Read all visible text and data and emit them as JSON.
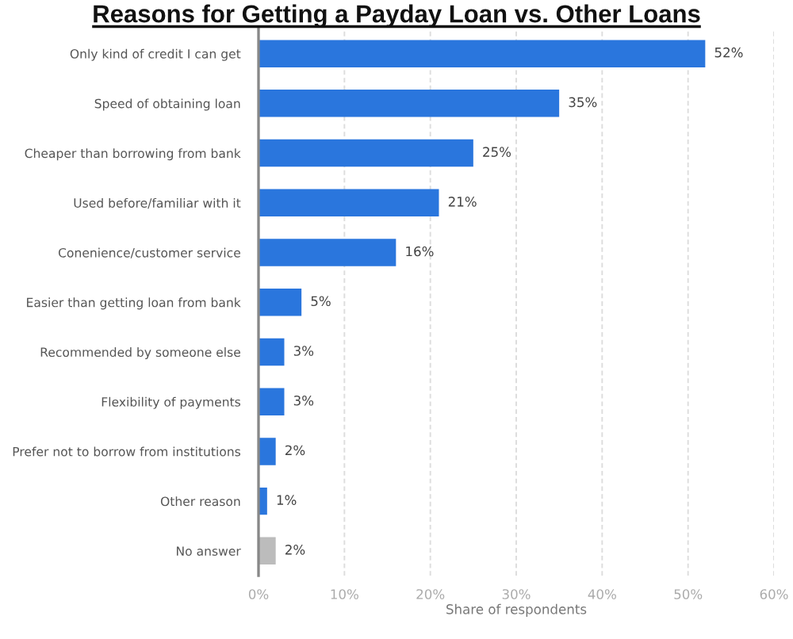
{
  "chart_data": {
    "type": "bar",
    "orientation": "horizontal",
    "title": "Reasons for Getting a Payday Loan vs. Other Loans",
    "xlabel": "Share of respondents",
    "categories": [
      "Only kind of credit I can get",
      "Speed of obtaining loan",
      "Cheaper than borrowing from bank",
      "Used before/familiar with it",
      "Conenience/customer service",
      "Easier than getting loan from bank",
      "Recommended by someone else",
      "Flexibility of payments",
      "Prefer not to borrow from institutions",
      "Other reason",
      "No answer"
    ],
    "values": [
      52,
      35,
      25,
      21,
      16,
      5,
      3,
      3,
      2,
      1,
      2
    ],
    "value_labels": [
      "52%",
      "35%",
      "25%",
      "21%",
      "16%",
      "5%",
      "3%",
      "3%",
      "2%",
      "1%",
      "2%"
    ],
    "colors": [
      "#2a76dd",
      "#2a76dd",
      "#2a76dd",
      "#2a76dd",
      "#2a76dd",
      "#2a76dd",
      "#2a76dd",
      "#2a76dd",
      "#2a76dd",
      "#2a76dd",
      "#bcbcbc"
    ],
    "xlim": [
      0,
      60
    ],
    "xticks": [
      {
        "value": 0,
        "label": "0%"
      },
      {
        "value": 10,
        "label": "10%"
      },
      {
        "value": 20,
        "label": "20%"
      },
      {
        "value": 30,
        "label": "30%"
      },
      {
        "value": 40,
        "label": "40%"
      },
      {
        "value": 50,
        "label": "50%"
      },
      {
        "value": 60,
        "label": "60%"
      }
    ],
    "grid": "x",
    "legend": false
  }
}
